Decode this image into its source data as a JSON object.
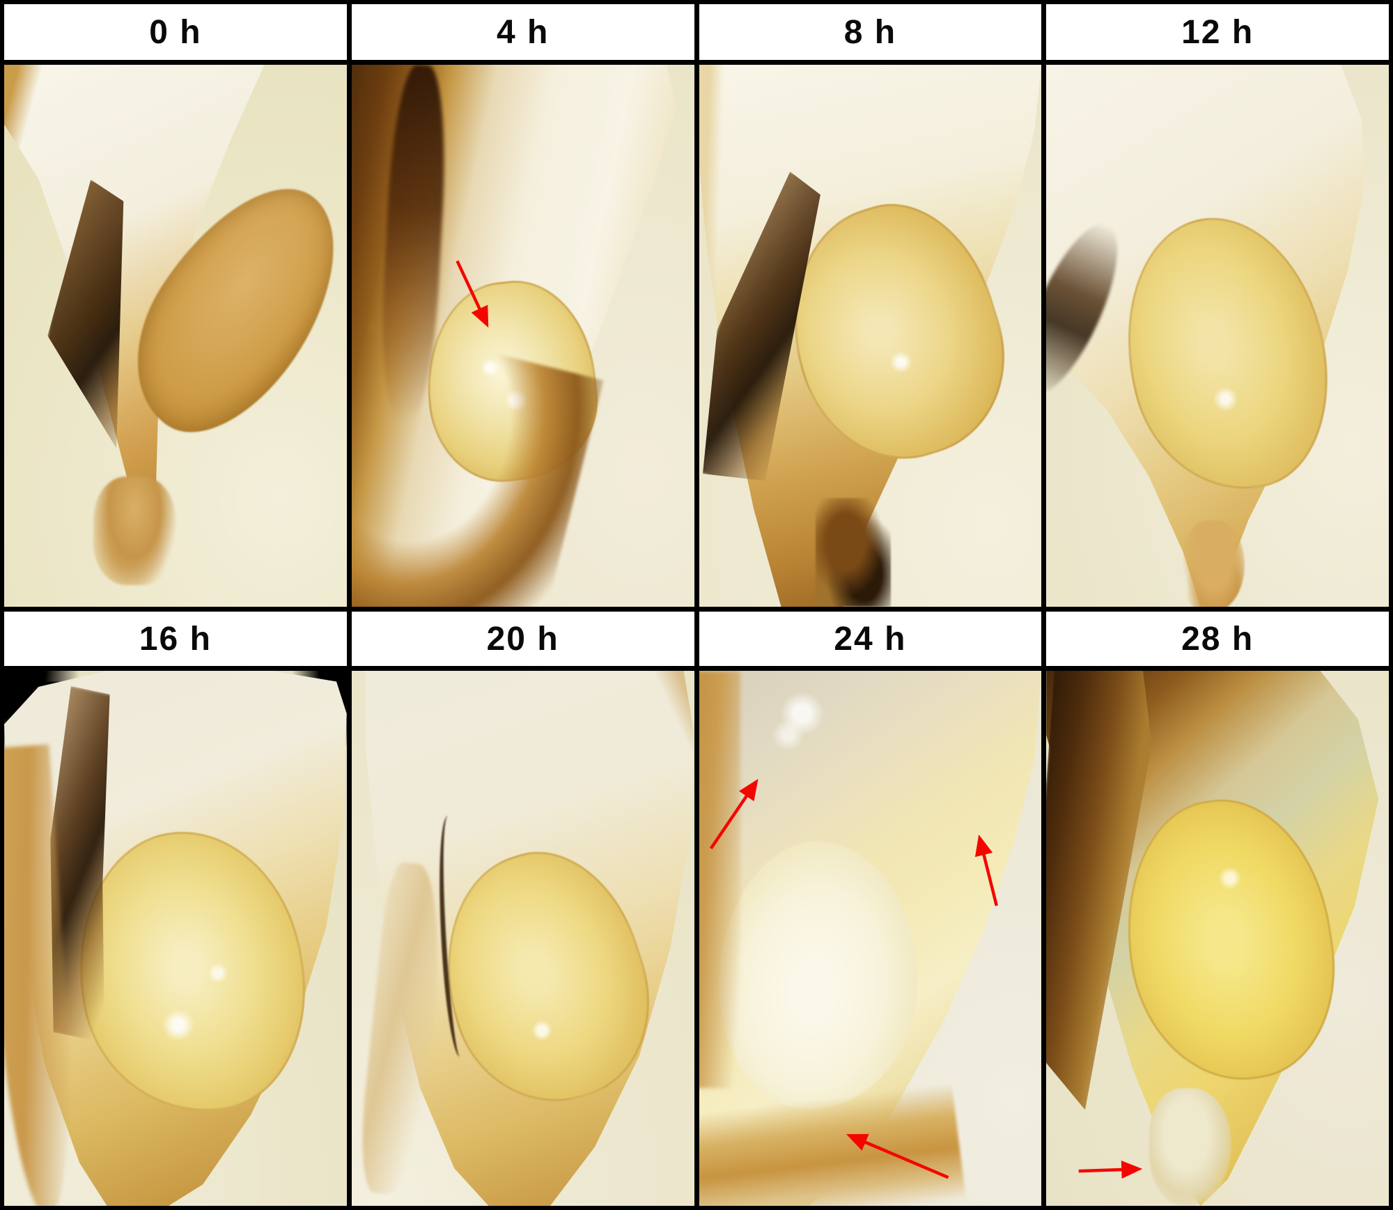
{
  "figure": {
    "type": "photo-time-series",
    "description": "Grain embryo macro photographs over time",
    "grid": {
      "rows": 2,
      "cols": 4
    },
    "colors": {
      "frame": "#000000",
      "header_bg": "#ffffff",
      "header_text": "#0a0a0a",
      "arrow": "#f40600",
      "background_cream": "#ece7cc",
      "endosperm_white": "#f7f3e5",
      "husk_gold": "#c79742",
      "crease_brown": "#3a2408",
      "embryo_yellow": "#eed66e"
    },
    "panels": [
      {
        "label": "0 h",
        "arrows": []
      },
      {
        "label": "4 h",
        "arrows": [
          {
            "from": [
              30.8,
              36.2
            ],
            "to": [
              39.9,
              48.5
            ]
          }
        ]
      },
      {
        "label": "8 h",
        "arrows": []
      },
      {
        "label": "12 h",
        "arrows": []
      },
      {
        "label": "16 h",
        "arrows": []
      },
      {
        "label": "20 h",
        "arrows": []
      },
      {
        "label": "24 h",
        "arrows": [
          {
            "from": [
              3.4,
              33.2
            ],
            "to": [
              17.2,
              20.2
            ]
          },
          {
            "from": [
              86.8,
              43.9
            ],
            "to": [
              81.6,
              30.6
            ]
          },
          {
            "from": [
              72.7,
              94.7
            ],
            "to": [
              42.9,
              86.6
            ]
          }
        ]
      },
      {
        "label": "28 h",
        "arrows": [
          {
            "from": [
              9.5,
              93.5
            ],
            "to": [
              28.1,
              93.1
            ]
          }
        ]
      }
    ]
  }
}
